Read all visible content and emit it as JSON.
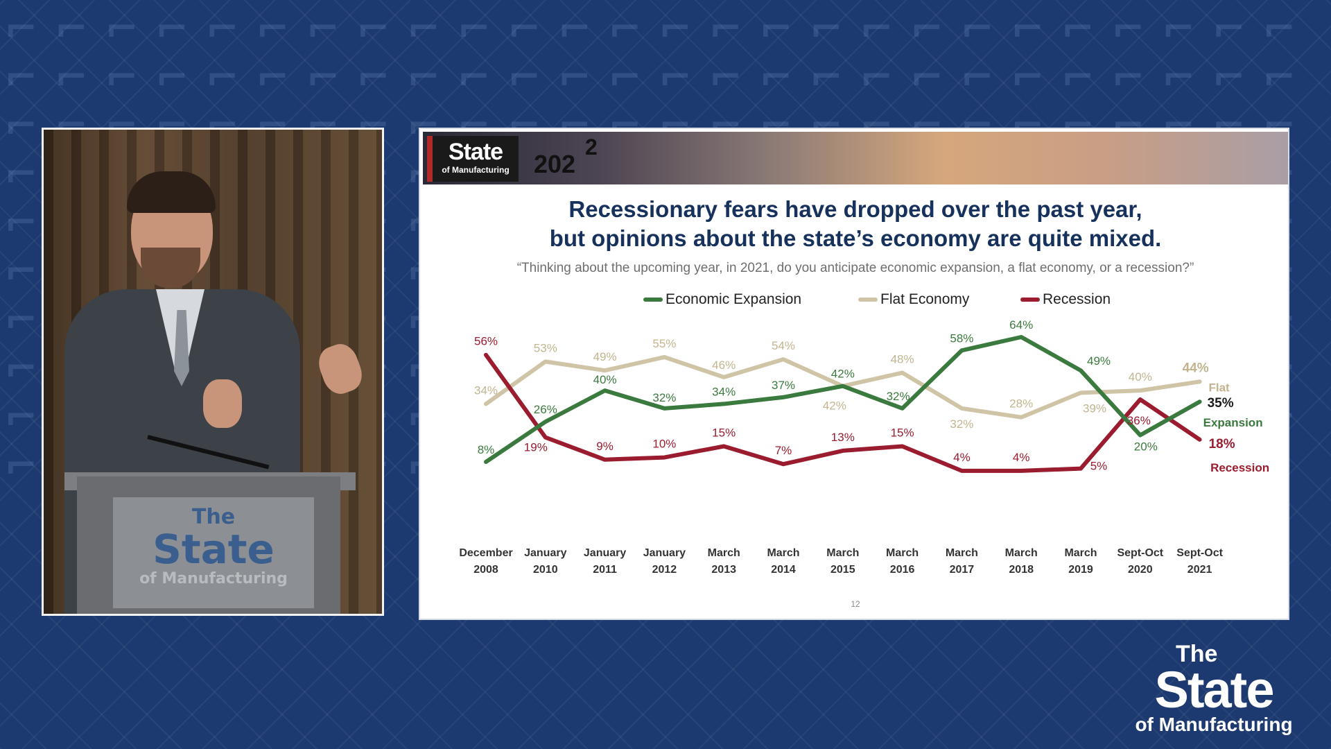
{
  "branding": {
    "the": "The",
    "state": "State",
    "of_manufacturing": "of Manufacturing",
    "banner_year": "202",
    "banner_superscript": "2"
  },
  "slide": {
    "title_line1": "Recessionary fears have dropped over the past year,",
    "title_line2": "but opinions about the state’s economy are quite mixed.",
    "question": "“Thinking about the upcoming year, in 2021, do you anticipate economic expansion, a flat economy, or a recession?”",
    "page_number": "12"
  },
  "colors": {
    "expansion": "#3b7a3e",
    "flat": "#cfc4a6",
    "recession": "#9a1c2e",
    "title": "#16325c",
    "background": "#1d3a70"
  },
  "chart_data": {
    "type": "line",
    "categories": [
      [
        "December",
        "2008"
      ],
      [
        "January",
        "2010"
      ],
      [
        "January",
        "2011"
      ],
      [
        "January",
        "2012"
      ],
      [
        "March",
        "2013"
      ],
      [
        "March",
        "2014"
      ],
      [
        "March",
        "2015"
      ],
      [
        "March",
        "2016"
      ],
      [
        "March",
        "2017"
      ],
      [
        "March",
        "2018"
      ],
      [
        "March",
        "2019"
      ],
      [
        "Sept-Oct",
        "2020"
      ],
      [
        "Sept-Oct",
        "2021"
      ]
    ],
    "ylim": [
      0,
      70
    ],
    "grid": false,
    "legend_position": "top",
    "series": [
      {
        "key": "expansion",
        "name": "Economic Expansion",
        "end_label": "Expansion",
        "values": [
          8,
          26,
          40,
          32,
          34,
          37,
          42,
          32,
          58,
          64,
          49,
          20,
          35
        ],
        "labels": [
          "8%",
          "26%",
          "40%",
          "32%",
          "34%",
          "37%",
          "42%",
          "32%",
          "58%",
          "64%",
          "49%",
          "20%",
          "35%"
        ]
      },
      {
        "key": "flat",
        "name": "Flat Economy",
        "end_label": "Flat",
        "values": [
          34,
          53,
          49,
          55,
          46,
          54,
          42,
          48,
          32,
          28,
          39,
          40,
          44
        ],
        "labels": [
          "34%",
          "53%",
          "49%",
          "55%",
          "46%",
          "54%",
          "42%",
          "48%",
          "32%",
          "28%",
          "39%",
          "40%",
          "44%"
        ]
      },
      {
        "key": "recession",
        "name": "Recession",
        "end_label": "Recession",
        "values": [
          56,
          19,
          9,
          10,
          15,
          7,
          13,
          15,
          4,
          4,
          5,
          36,
          18
        ],
        "labels": [
          "56%",
          "19%",
          "9%",
          "10%",
          "15%",
          "7%",
          "13%",
          "15%",
          "4%",
          "4%",
          "5%",
          "36%",
          "18%"
        ]
      }
    ]
  }
}
